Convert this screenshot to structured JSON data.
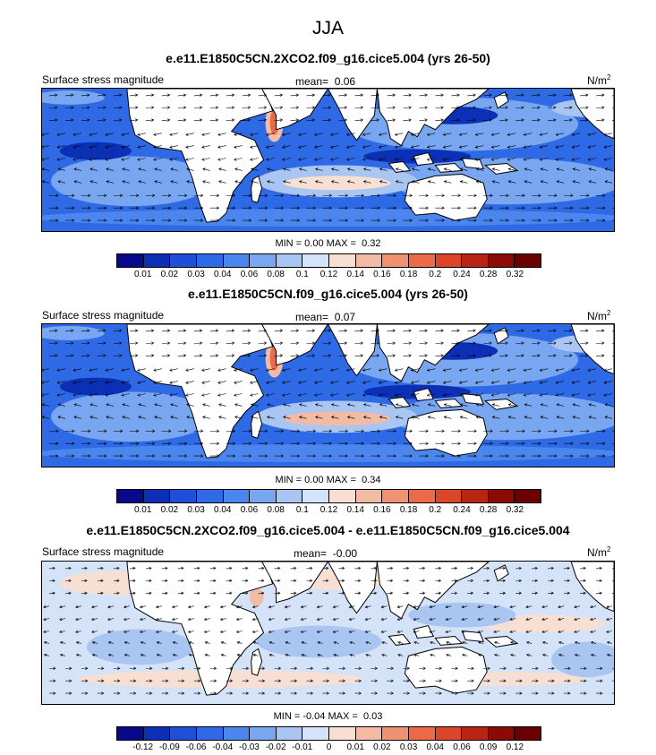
{
  "season": "JJA",
  "panels": [
    {
      "title": "e.e11.E1850C5CN.2XCO2.f09_g16.cice5.004 (yrs 26-50)",
      "left_label": "Surface stress magnitude",
      "mean_label": "mean=",
      "mean_value": "0.06",
      "units": "N/m",
      "units_sup": "2",
      "min_label": "MIN =",
      "min_value": "0.00",
      "max_label": "MAX =",
      "max_value": "0.32",
      "colorbar_ticks": [
        "0.01",
        "0.02",
        "0.03",
        "0.04",
        "0.06",
        "0.08",
        "0.1",
        "0.12",
        "0.14",
        "0.16",
        "0.18",
        "0.2",
        "0.24",
        "0.28",
        "0.32"
      ]
    },
    {
      "title": "e.e11.E1850C5CN.f09_g16.cice5.004 (yrs 26-50)",
      "left_label": "Surface stress magnitude",
      "mean_label": "mean=",
      "mean_value": "0.07",
      "units": "N/m",
      "units_sup": "2",
      "min_label": "MIN =",
      "min_value": "0.00",
      "max_label": "MAX =",
      "max_value": "0.34",
      "colorbar_ticks": [
        "0.01",
        "0.02",
        "0.03",
        "0.04",
        "0.06",
        "0.08",
        "0.1",
        "0.12",
        "0.14",
        "0.16",
        "0.18",
        "0.2",
        "0.24",
        "0.28",
        "0.32"
      ]
    },
    {
      "title": "e.e11.E1850C5CN.2XCO2.f09_g16.cice5.004 - e.e11.E1850C5CN.f09_g16.cice5.004",
      "left_label": "Surface stress magnitude",
      "mean_label": "mean=",
      "mean_value": "-0.00",
      "units": "N/m",
      "units_sup": "2",
      "min_label": "MIN =",
      "min_value": "-0.04",
      "max_label": "MAX =",
      "max_value": "0.03",
      "colorbar_ticks": [
        "-0.12",
        "-0.09",
        "-0.06",
        "-0.04",
        "-0.03",
        "-0.02",
        "-0.01",
        "0",
        "0.01",
        "0.02",
        "0.03",
        "0.04",
        "0.06",
        "0.09",
        "0.12"
      ]
    }
  ],
  "colors": {
    "palette": [
      "#08088a",
      "#0b2fb5",
      "#1e4fd8",
      "#2f6ae6",
      "#4a86ee",
      "#78a6f0",
      "#a9c6f3",
      "#d4e3f7",
      "#f7dfd3",
      "#f4bba4",
      "#ef9274",
      "#ec6a48",
      "#dd4528",
      "#b82514",
      "#8c0a05",
      "#6b0000"
    ],
    "land": "#ffffff",
    "coast": "#000000"
  },
  "chart_data": [
    {
      "type": "heatmap",
      "title": "e.e11.E1850C5CN.2XCO2.f09_g16.cice5.004 (yrs 26-50)",
      "variable": "Surface stress magnitude",
      "units": "N/m2",
      "mean": 0.06,
      "min": 0.0,
      "max": 0.32,
      "contour_levels": [
        0.01,
        0.02,
        0.03,
        0.04,
        0.06,
        0.08,
        0.1,
        0.12,
        0.14,
        0.16,
        0.18,
        0.2,
        0.24,
        0.28,
        0.32
      ]
    },
    {
      "type": "heatmap",
      "title": "e.e11.E1850C5CN.f09_g16.cice5.004 (yrs 26-50)",
      "variable": "Surface stress magnitude",
      "units": "N/m2",
      "mean": 0.07,
      "min": 0.0,
      "max": 0.34,
      "contour_levels": [
        0.01,
        0.02,
        0.03,
        0.04,
        0.06,
        0.08,
        0.1,
        0.12,
        0.14,
        0.16,
        0.18,
        0.2,
        0.24,
        0.28,
        0.32
      ]
    },
    {
      "type": "heatmap",
      "title": "e.e11.E1850C5CN.2XCO2.f09_g16.cice5.004 - e.e11.E1850C5CN.f09_g16.cice5.004",
      "variable": "Surface stress magnitude",
      "units": "N/m2",
      "mean": -0.0,
      "min": -0.04,
      "max": 0.03,
      "contour_levels": [
        -0.12,
        -0.09,
        -0.06,
        -0.04,
        -0.03,
        -0.02,
        -0.01,
        0,
        0.01,
        0.02,
        0.03,
        0.04,
        0.06,
        0.09,
        0.12
      ]
    }
  ]
}
